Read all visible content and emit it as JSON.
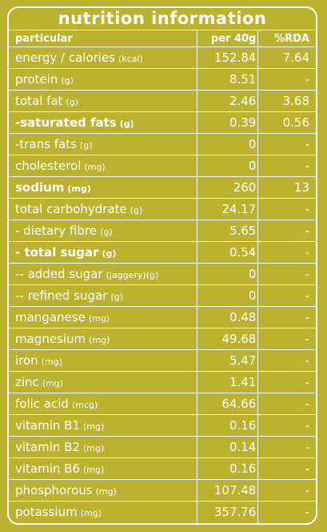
{
  "title": "nutrition information",
  "header": {
    "name": "particular",
    "value": "per 40g",
    "rda": "%RDA"
  },
  "rows": [
    {
      "name": "energy / calories",
      "unit": "(kcal)",
      "value": "152.84",
      "rda": "7.64",
      "bold": false
    },
    {
      "name": "protein",
      "unit": "(g)",
      "value": "8.51",
      "rda": "-",
      "bold": false
    },
    {
      "name": "total fat",
      "unit": "(g)",
      "value": "2.46",
      "rda": "3.68",
      "bold": false
    },
    {
      "name": "-saturated fats",
      "unit": "(g)",
      "value": "0.39",
      "rda": "0.56",
      "bold": true
    },
    {
      "name": "-trans fats",
      "unit": "(g)",
      "value": "0",
      "rda": "-",
      "bold": false
    },
    {
      "name": "cholesterol",
      "unit": "(mg)",
      "value": "0",
      "rda": "-",
      "bold": false
    },
    {
      "name": "sodium",
      "unit": "(mg)",
      "value": "260",
      "rda": "13",
      "bold": true
    },
    {
      "name": "total carbohydrate",
      "unit": "(g)",
      "value": "24.17",
      "rda": "-",
      "bold": false
    },
    {
      "name": "- dietary fibre",
      "unit": "(g)",
      "value": "5.65",
      "rda": "-",
      "bold": false
    },
    {
      "name": "- total sugar",
      "unit": "(g)",
      "value": "0.54",
      "rda": "-",
      "bold": true
    },
    {
      "name": "-- added sugar",
      "unit": "(jaggery)(g)",
      "value": "0",
      "rda": "-",
      "bold": false
    },
    {
      "name": "-- refined sugar",
      "unit": "(g)",
      "value": "0",
      "rda": "-",
      "bold": false
    },
    {
      "name": "manganese",
      "unit": "(mg)",
      "value": "0.48",
      "rda": "-",
      "bold": false
    },
    {
      "name": "magnesium",
      "unit": "(mg)",
      "value": "49.68",
      "rda": "-",
      "bold": false
    },
    {
      "name": "iron",
      "unit": "(mg)",
      "value": "5.47",
      "rda": "-",
      "bold": false
    },
    {
      "name": "zinc",
      "unit": "(mg)",
      "value": "1.41",
      "rda": "-",
      "bold": false
    },
    {
      "name": "folic acid",
      "unit": "(mcg)",
      "value": "64.66",
      "rda": "-",
      "bold": false
    },
    {
      "name": "vitamin B1",
      "unit": "(mg)",
      "value": "0.16",
      "rda": "-",
      "bold": false
    },
    {
      "name": "vitamin B2",
      "unit": "(mg)",
      "value": "0.14",
      "rda": "-",
      "bold": false
    },
    {
      "name": "vitamin B6",
      "unit": "(mg)",
      "value": "0.16",
      "rda": "-",
      "bold": false
    },
    {
      "name": "phosphorous",
      "unit": "(mg)",
      "value": "107.48",
      "rda": "-",
      "bold": false
    },
    {
      "name": "potassium",
      "unit": "(mg)",
      "value": "357.76",
      "rda": "-",
      "bold": false
    }
  ],
  "colors": {
    "background": "#bcb22f",
    "text": "#ffffff",
    "border": "#ffffff"
  }
}
